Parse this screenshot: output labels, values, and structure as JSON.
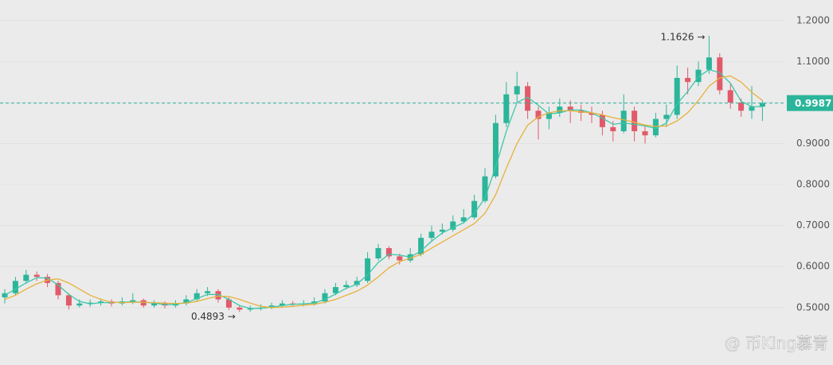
{
  "chart_data": {
    "type": "candlestick",
    "ylim": [
      0.36,
      1.25
    ],
    "yticks": [
      {
        "value": 0.5,
        "label": "0.5000"
      },
      {
        "value": 0.6,
        "label": "0.6000"
      },
      {
        "value": 0.7,
        "label": "0.7000"
      },
      {
        "value": 0.8,
        "label": "0.8000"
      },
      {
        "value": 0.9,
        "label": "0.9000"
      },
      {
        "value": 1.0,
        "label": "1.0000"
      },
      {
        "value": 1.1,
        "label": "1.1000"
      },
      {
        "value": 1.2,
        "label": "1.2000"
      }
    ],
    "grid": true,
    "up_color": "#2bb59a",
    "down_color": "#e15a6a",
    "last_price": {
      "value": 0.9987,
      "label": "0.9987"
    },
    "high_label": "1.1626 →",
    "low_label": "0.4893 →",
    "watermark": "@ 币King慕青",
    "open": [
      0.525,
      0.535,
      0.565,
      0.58,
      0.575,
      0.56,
      0.53,
      0.505,
      0.51,
      0.512,
      0.515,
      0.51,
      0.515,
      0.518,
      0.505,
      0.51,
      0.505,
      0.51,
      0.52,
      0.535,
      0.54,
      0.52,
      0.5,
      0.495,
      0.498,
      0.5,
      0.505,
      0.51,
      0.508,
      0.51,
      0.515,
      0.535,
      0.55,
      0.555,
      0.565,
      0.62,
      0.645,
      0.625,
      0.615,
      0.63,
      0.67,
      0.685,
      0.69,
      0.71,
      0.72,
      0.76,
      0.82,
      0.95,
      1.02,
      1.04,
      0.98,
      0.96,
      0.975,
      0.99,
      0.98,
      0.975,
      0.97,
      0.94,
      0.93,
      0.98,
      0.93,
      0.92,
      0.96,
      0.97,
      1.06,
      1.05,
      1.08,
      1.11,
      1.03,
      1.0,
      0.98,
      0.99
    ],
    "high": [
      0.545,
      0.575,
      0.592,
      0.588,
      0.582,
      0.565,
      0.535,
      0.52,
      0.52,
      0.522,
      0.52,
      0.525,
      0.535,
      0.522,
      0.518,
      0.515,
      0.518,
      0.53,
      0.545,
      0.55,
      0.545,
      0.525,
      0.505,
      0.505,
      0.508,
      0.512,
      0.518,
      0.516,
      0.518,
      0.525,
      0.545,
      0.56,
      0.565,
      0.575,
      0.635,
      0.655,
      0.65,
      0.632,
      0.645,
      0.68,
      0.7,
      0.705,
      0.725,
      0.74,
      0.775,
      0.84,
      0.97,
      1.05,
      1.075,
      1.05,
      0.99,
      0.99,
      1.01,
      1.005,
      0.995,
      0.99,
      0.98,
      0.955,
      1.02,
      0.99,
      0.945,
      0.975,
      0.995,
      1.09,
      1.085,
      1.1,
      1.1626,
      1.12,
      1.045,
      1.01,
      1.04,
      1.005
    ],
    "low": [
      0.51,
      0.53,
      0.558,
      0.565,
      0.55,
      0.52,
      0.495,
      0.5,
      0.502,
      0.505,
      0.503,
      0.505,
      0.508,
      0.5,
      0.5,
      0.498,
      0.5,
      0.505,
      0.515,
      0.528,
      0.512,
      0.494,
      0.4893,
      0.49,
      0.493,
      0.496,
      0.5,
      0.502,
      0.503,
      0.505,
      0.51,
      0.53,
      0.545,
      0.55,
      0.56,
      0.615,
      0.618,
      0.605,
      0.61,
      0.625,
      0.66,
      0.678,
      0.685,
      0.705,
      0.715,
      0.755,
      0.815,
      0.94,
      1.0,
      0.96,
      0.91,
      0.935,
      0.965,
      0.95,
      0.955,
      0.95,
      0.92,
      0.905,
      0.925,
      0.905,
      0.9,
      0.915,
      0.94,
      0.96,
      1.02,
      1.04,
      1.07,
      1.02,
      0.985,
      0.965,
      0.96,
      0.955
    ],
    "close": [
      0.535,
      0.565,
      0.58,
      0.575,
      0.56,
      0.53,
      0.505,
      0.51,
      0.512,
      0.515,
      0.51,
      0.515,
      0.518,
      0.505,
      0.51,
      0.505,
      0.51,
      0.52,
      0.535,
      0.54,
      0.52,
      0.5,
      0.495,
      0.498,
      0.5,
      0.505,
      0.51,
      0.508,
      0.51,
      0.515,
      0.535,
      0.55,
      0.555,
      0.565,
      0.62,
      0.645,
      0.625,
      0.615,
      0.63,
      0.67,
      0.685,
      0.69,
      0.71,
      0.72,
      0.76,
      0.82,
      0.95,
      1.02,
      1.04,
      0.98,
      0.96,
      0.975,
      0.99,
      0.98,
      0.975,
      0.97,
      0.94,
      0.93,
      0.98,
      0.93,
      0.92,
      0.96,
      0.97,
      1.06,
      1.05,
      1.08,
      1.11,
      1.03,
      1.0,
      0.98,
      0.99,
      0.9987
    ],
    "series": [
      {
        "color": "#3cc7a8",
        "values": [
          0.53,
          0.545,
          0.56,
          0.573,
          0.572,
          0.555,
          0.532,
          0.515,
          0.509,
          0.512,
          0.512,
          0.513,
          0.514,
          0.513,
          0.511,
          0.507,
          0.508,
          0.512,
          0.522,
          0.532,
          0.532,
          0.52,
          0.505,
          0.498,
          0.498,
          0.501,
          0.505,
          0.508,
          0.509,
          0.511,
          0.52,
          0.533,
          0.547,
          0.557,
          0.58,
          0.61,
          0.63,
          0.628,
          0.623,
          0.638,
          0.662,
          0.682,
          0.695,
          0.707,
          0.73,
          0.767,
          0.843,
          0.93,
          1.0,
          1.013,
          0.993,
          0.972,
          0.975,
          0.982,
          0.982,
          0.975,
          0.962,
          0.947,
          0.95,
          0.947,
          0.943,
          0.937,
          0.95,
          0.997,
          1.027,
          1.063,
          1.08,
          1.073,
          1.047,
          1.003,
          0.99,
          0.99
        ]
      },
      {
        "color": "#e8b13b",
        "values": [
          0.52,
          0.53,
          0.545,
          0.558,
          0.567,
          0.57,
          0.56,
          0.545,
          0.53,
          0.52,
          0.513,
          0.512,
          0.513,
          0.513,
          0.512,
          0.511,
          0.51,
          0.511,
          0.515,
          0.522,
          0.528,
          0.527,
          0.52,
          0.511,
          0.503,
          0.5,
          0.501,
          0.503,
          0.506,
          0.508,
          0.513,
          0.52,
          0.53,
          0.54,
          0.555,
          0.575,
          0.597,
          0.612,
          0.62,
          0.63,
          0.645,
          0.66,
          0.675,
          0.69,
          0.705,
          0.73,
          0.775,
          0.84,
          0.9,
          0.945,
          0.965,
          0.975,
          0.98,
          0.98,
          0.977,
          0.975,
          0.97,
          0.963,
          0.958,
          0.952,
          0.945,
          0.942,
          0.943,
          0.955,
          0.975,
          1.005,
          1.04,
          1.06,
          1.065,
          1.05,
          1.025,
          1.005
        ]
      }
    ]
  }
}
